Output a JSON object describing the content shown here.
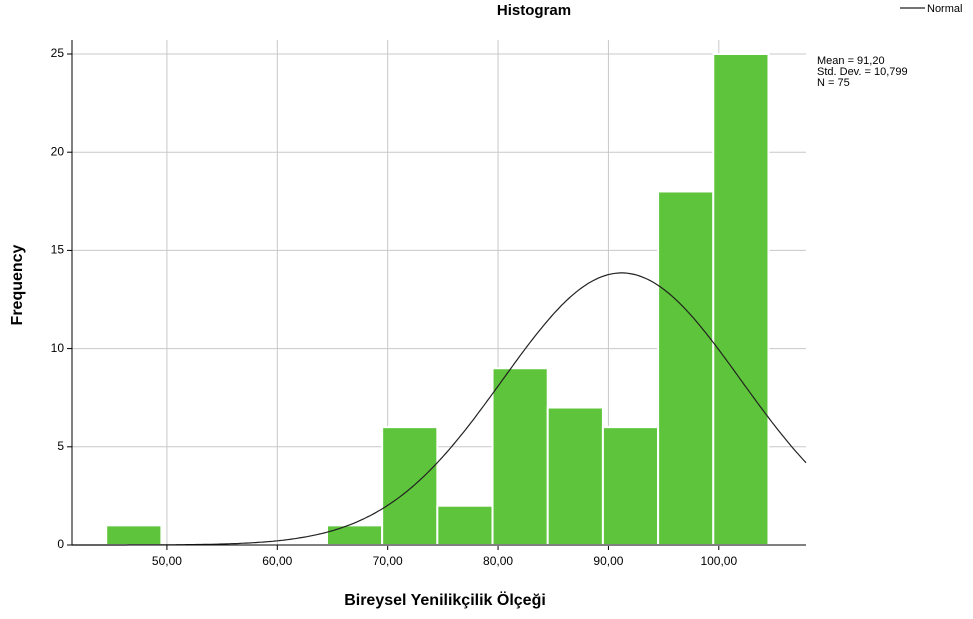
{
  "chart_data": {
    "type": "histogram",
    "title": "Histogram",
    "x_label": "Bireysel Yenilikçilik Ölçeği",
    "y_label": "Frequency",
    "bins": [
      44.5,
      49.5,
      54.5,
      59.5,
      64.5,
      69.5,
      74.5,
      79.5,
      84.5,
      89.5,
      94.5,
      99.5,
      104.5
    ],
    "values": [
      1,
      0,
      0,
      0,
      1,
      6,
      2,
      9,
      7,
      6,
      18,
      25
    ],
    "color": "#5ec43b",
    "xlim": [
      41.4,
      107.9
    ],
    "xticks": [
      {
        "value": 50,
        "label": "50,00"
      },
      {
        "value": 60,
        "label": "60,00"
      },
      {
        "value": 70,
        "label": "70,00"
      },
      {
        "value": 80,
        "label": "80,00"
      },
      {
        "value": 90,
        "label": "90,00"
      },
      {
        "value": 100,
        "label": "100,00"
      }
    ],
    "ylim": [
      0,
      25
    ],
    "yticks": [
      0,
      5,
      10,
      15,
      20,
      25
    ],
    "grid": true,
    "normal": {
      "name": "Normal",
      "color": "#222222",
      "mean": {
        "value": 91.2,
        "label": "Mean = 91,20"
      },
      "sd": {
        "value": 10.799,
        "label": "Std. Dev. = 10,799"
      },
      "n": {
        "value": 75,
        "label": "N = 75"
      }
    },
    "legend": "top-right"
  }
}
